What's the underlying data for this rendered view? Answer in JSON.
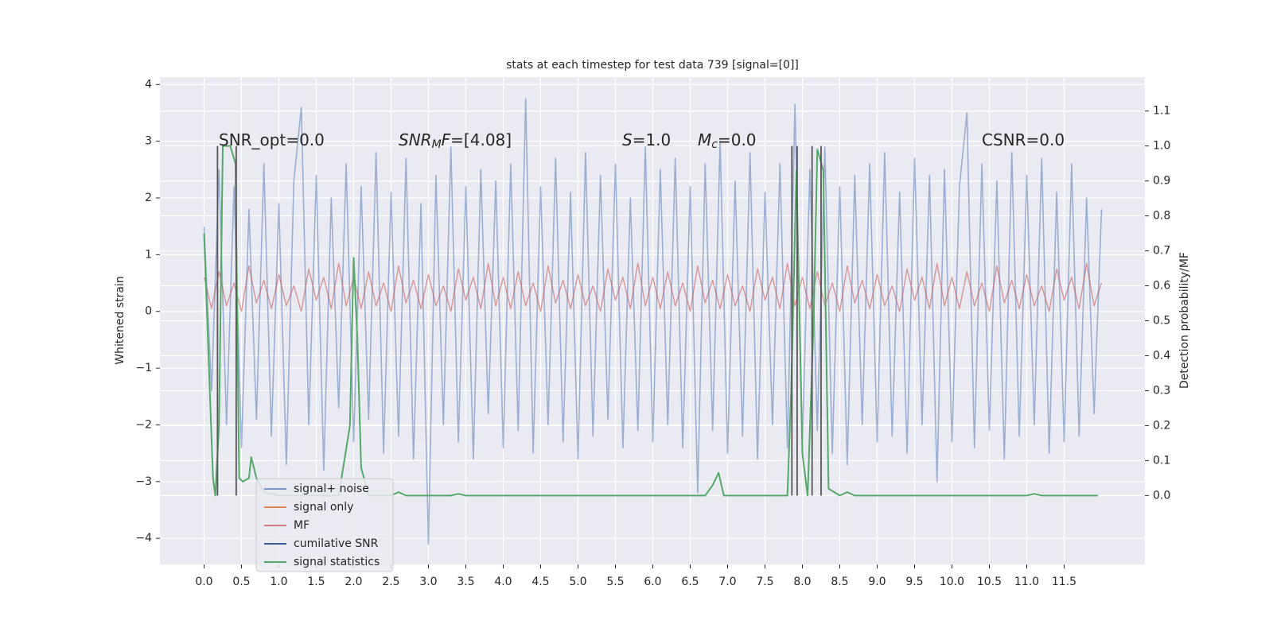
{
  "chart_data": {
    "type": "line",
    "title": "stats at each timestep for test data 739 [signal=[0]]",
    "ylabel": "Whitened strain",
    "y2label": "Detection probability/MF",
    "grid": true,
    "legend": "lower left",
    "xlim": [
      -0.59,
      12.58
    ],
    "ylim": [
      -4.46,
      4.13
    ],
    "y2lim": [
      -0.197,
      1.197
    ],
    "xticks": [
      {
        "value": 0,
        "label": "0.0"
      },
      {
        "value": 0.5,
        "label": "0.5"
      },
      {
        "value": 1,
        "label": "1.0"
      },
      {
        "value": 1.5,
        "label": "1.5"
      },
      {
        "value": 2,
        "label": "2.0"
      },
      {
        "value": 2.5,
        "label": "2.5"
      },
      {
        "value": 3,
        "label": "3.0"
      },
      {
        "value": 3.5,
        "label": "3.5"
      },
      {
        "value": 4,
        "label": "4.0"
      },
      {
        "value": 4.5,
        "label": "4.5"
      },
      {
        "value": 5,
        "label": "5.0"
      },
      {
        "value": 5.5,
        "label": "5.5"
      },
      {
        "value": 6,
        "label": "6.0"
      },
      {
        "value": 6.5,
        "label": "6.5"
      },
      {
        "value": 7,
        "label": "7.0"
      },
      {
        "value": 7.5,
        "label": "7.5"
      },
      {
        "value": 8,
        "label": "8.0"
      },
      {
        "value": 8.5,
        "label": "8.5"
      },
      {
        "value": 9,
        "label": "9.0"
      },
      {
        "value": 9.5,
        "label": "9.5"
      },
      {
        "value": 10,
        "label": "10.0"
      },
      {
        "value": 10.5,
        "label": "10.5"
      },
      {
        "value": 11,
        "label": "11.0"
      },
      {
        "value": 11.5,
        "label": "11.5"
      }
    ],
    "yticks": [
      {
        "value": -4,
        "label": "−4"
      },
      {
        "value": -3,
        "label": "−3"
      },
      {
        "value": -2,
        "label": "−2"
      },
      {
        "value": -1,
        "label": "−1"
      },
      0,
      1,
      2,
      3,
      4
    ],
    "y2ticks": [
      {
        "value": 0,
        "label": "0.0"
      },
      {
        "value": 0.1,
        "label": "0.1"
      },
      {
        "value": 0.2,
        "label": "0.2"
      },
      {
        "value": 0.3,
        "label": "0.3"
      },
      {
        "value": 0.4,
        "label": "0.4"
      },
      {
        "value": 0.5,
        "label": "0.5"
      },
      {
        "value": 0.6,
        "label": "0.6"
      },
      {
        "value": 0.7,
        "label": "0.7"
      },
      {
        "value": 0.8,
        "label": "0.8"
      },
      {
        "value": 0.9,
        "label": "0.9"
      },
      {
        "value": 1,
        "label": "1.0"
      },
      {
        "value": 1.1,
        "label": "1.1"
      }
    ],
    "x": [
      0,
      0.1,
      0.2,
      0.3,
      0.4,
      0.5,
      0.6,
      0.7,
      0.8,
      0.9,
      1,
      1.1,
      1.2,
      1.3,
      1.4,
      1.5,
      1.6,
      1.7,
      1.8,
      1.9,
      2,
      2.1,
      2.2,
      2.3,
      2.4,
      2.5,
      2.6,
      2.7,
      2.8,
      2.9,
      3,
      3.1,
      3.2,
      3.3,
      3.4,
      3.5,
      3.6,
      3.7,
      3.8,
      3.9,
      4,
      4.1,
      4.2,
      4.3,
      4.4,
      4.5,
      4.6,
      4.7,
      4.8,
      4.9,
      5,
      5.1,
      5.2,
      5.3,
      5.4,
      5.5,
      5.6,
      5.7,
      5.8,
      5.9,
      6,
      6.1,
      6.2,
      6.3,
      6.4,
      6.5,
      6.6,
      6.7,
      6.8,
      6.9,
      7,
      7.1,
      7.2,
      7.3,
      7.4,
      7.5,
      7.6,
      7.7,
      7.8,
      7.9,
      8,
      8.1,
      8.2,
      8.3,
      8.4,
      8.5,
      8.6,
      8.7,
      8.8,
      8.9,
      9,
      9.1,
      9.2,
      9.3,
      9.4,
      9.5,
      9.6,
      9.7,
      9.8,
      9.9,
      10,
      10.1,
      10.2,
      10.3,
      10.4,
      10.5,
      10.6,
      10.7,
      10.8,
      10.9,
      11,
      11.1,
      11.2,
      11.3,
      11.4,
      11.5,
      11.6,
      11.7,
      11.8,
      11.9,
      12
    ],
    "series": [
      {
        "name": "signal+ noise",
        "color": "#4c72b0",
        "values": [
          1.5,
          -1.4,
          2.5,
          -2.0,
          2.2,
          -2.4,
          1.8,
          -1.9,
          2.6,
          -2.2,
          1.9,
          -2.7,
          2.3,
          3.6,
          -2.0,
          2.4,
          -2.8,
          2.0,
          -1.7,
          2.6,
          -2.3,
          2.2,
          -1.9,
          2.8,
          -2.5,
          2.1,
          -2.2,
          2.7,
          -2.6,
          1.9,
          -4.1,
          2.4,
          -2.0,
          2.9,
          -2.3,
          2.2,
          -2.6,
          2.5,
          -1.8,
          2.3,
          -2.4,
          2.6,
          -2.1,
          3.75,
          -2.5,
          2.2,
          -2.0,
          2.7,
          -2.3,
          2.1,
          -2.6,
          2.8,
          -2.2,
          2.4,
          -1.9,
          2.6,
          -2.4,
          2.0,
          -2.1,
          2.9,
          -2.3,
          2.5,
          -2.0,
          2.7,
          -2.4,
          2.2,
          -3.2,
          2.6,
          -2.1,
          3.0,
          -2.5,
          2.3,
          -2.2,
          2.8,
          -2.6,
          2.1,
          -2.0,
          2.6,
          -2.4,
          3.65,
          -2.3,
          2.5,
          -2.1,
          2.9,
          -2.5,
          2.2,
          -2.7,
          2.4,
          -2.0,
          2.6,
          -2.3,
          2.8,
          -2.2,
          2.1,
          -2.5,
          2.7,
          -2.0,
          2.4,
          -3.0,
          2.5,
          -2.3,
          2.2,
          3.5,
          -2.4,
          2.6,
          -2.1,
          2.3,
          -2.6,
          2.8,
          -2.2,
          2.4,
          -2.0,
          2.7,
          -2.5,
          2.1,
          -2.3,
          2.6,
          -2.2,
          2.0,
          -1.8,
          1.8
        ]
      },
      {
        "name": "signal only",
        "color": "#dd8452"
      },
      {
        "name": "MF",
        "color": "#c44e52",
        "values": [
          0.6,
          0.05,
          0.7,
          0.1,
          0.5,
          0.0,
          0.8,
          0.15,
          0.55,
          0.05,
          0.65,
          0.1,
          0.45,
          0.0,
          0.75,
          0.2,
          0.6,
          0.05,
          0.85,
          0.1,
          0.6,
          0.05,
          0.7,
          0.1,
          0.5,
          0.0,
          0.8,
          0.15,
          0.55,
          0.05,
          0.65,
          0.1,
          0.45,
          0.0,
          0.75,
          0.2,
          0.6,
          0.05,
          0.85,
          0.1,
          0.6,
          0.05,
          0.7,
          0.1,
          0.5,
          0.0,
          0.8,
          0.15,
          0.55,
          0.05,
          0.65,
          0.1,
          0.45,
          0.0,
          0.75,
          0.2,
          0.6,
          0.05,
          0.85,
          0.1,
          0.6,
          0.05,
          0.7,
          0.1,
          0.5,
          0.0,
          0.8,
          0.15,
          0.55,
          0.05,
          0.65,
          0.1,
          0.45,
          0.0,
          0.75,
          0.2,
          0.6,
          0.05,
          0.85,
          0.1,
          0.6,
          0.05,
          0.7,
          0.1,
          0.5,
          0.0,
          0.8,
          0.15,
          0.55,
          0.05,
          0.65,
          0.1,
          0.45,
          0.0,
          0.75,
          0.2,
          0.6,
          0.05,
          0.85,
          0.1,
          0.6,
          0.05,
          0.7,
          0.1,
          0.5,
          0.0,
          0.8,
          0.15,
          0.55,
          0.05,
          0.65,
          0.1,
          0.45,
          0.0,
          0.75,
          0.2,
          0.6,
          0.05,
          0.85,
          0.1,
          0.5
        ]
      },
      {
        "name": "cumilative SNR",
        "color": "#3b5b92"
      },
      {
        "name": "signal statistics",
        "color": "#55a868",
        "axis": "y2",
        "x": [
          0,
          0.12,
          0.15,
          0.2,
          0.25,
          0.35,
          0.42,
          0.47,
          0.52,
          0.6,
          0.63,
          0.7,
          0.8,
          1,
          1.8,
          1.95,
          2,
          2.05,
          2.1,
          2.2,
          2.5,
          2.6,
          2.7,
          3.3,
          3.4,
          3.5,
          6.6,
          6.7,
          6.8,
          6.88,
          6.95,
          7.8,
          7.85,
          7.92,
          8,
          8.07,
          8.15,
          8.2,
          8.28,
          8.35,
          8.5,
          8.6,
          8.7,
          11,
          11.1,
          11.2,
          11.95
        ],
        "values": [
          0.75,
          0.05,
          0,
          0.2,
          1,
          1,
          0.95,
          0.05,
          0.04,
          0.05,
          0.11,
          0.05,
          0.01,
          0,
          0,
          0.2,
          0.68,
          0.45,
          0.08,
          0,
          0,
          0.01,
          0,
          0,
          0.005,
          0,
          0,
          0,
          0.03,
          0.065,
          0,
          0,
          0.3,
          0.93,
          0.12,
          0,
          0.5,
          0.99,
          0.93,
          0.02,
          0,
          0.01,
          0,
          0,
          0.005,
          0,
          0
        ]
      }
    ],
    "vlines": {
      "color": "#555555",
      "axis": "y2",
      "x": [
        0.18,
        0.43,
        7.86,
        7.93,
        8.13,
        8.25
      ],
      "ymin": 0,
      "ymax": 1
    },
    "annotations": [
      {
        "parts": [
          {
            "text": "SNR_opt=0.0",
            "style": "normal"
          }
        ]
      },
      {
        "parts": [
          {
            "text": "SNR",
            "style": "italic"
          },
          {
            "text": "M",
            "style": "italic-sub"
          },
          {
            "text": "F",
            "style": "italic"
          },
          {
            "text": "=[4.08]",
            "style": "normal"
          }
        ]
      },
      {
        "parts": [
          {
            "text": "S",
            "style": "italic"
          },
          {
            "text": "=1.0",
            "style": "normal"
          }
        ]
      },
      {
        "parts": [
          {
            "text": "M",
            "style": "italic"
          },
          {
            "text": "c",
            "style": "italic-sub"
          },
          {
            "text": "=0.0",
            "style": "normal"
          }
        ]
      },
      {
        "parts": [
          {
            "text": "CSNR=0.0",
            "style": "normal"
          }
        ]
      }
    ]
  }
}
